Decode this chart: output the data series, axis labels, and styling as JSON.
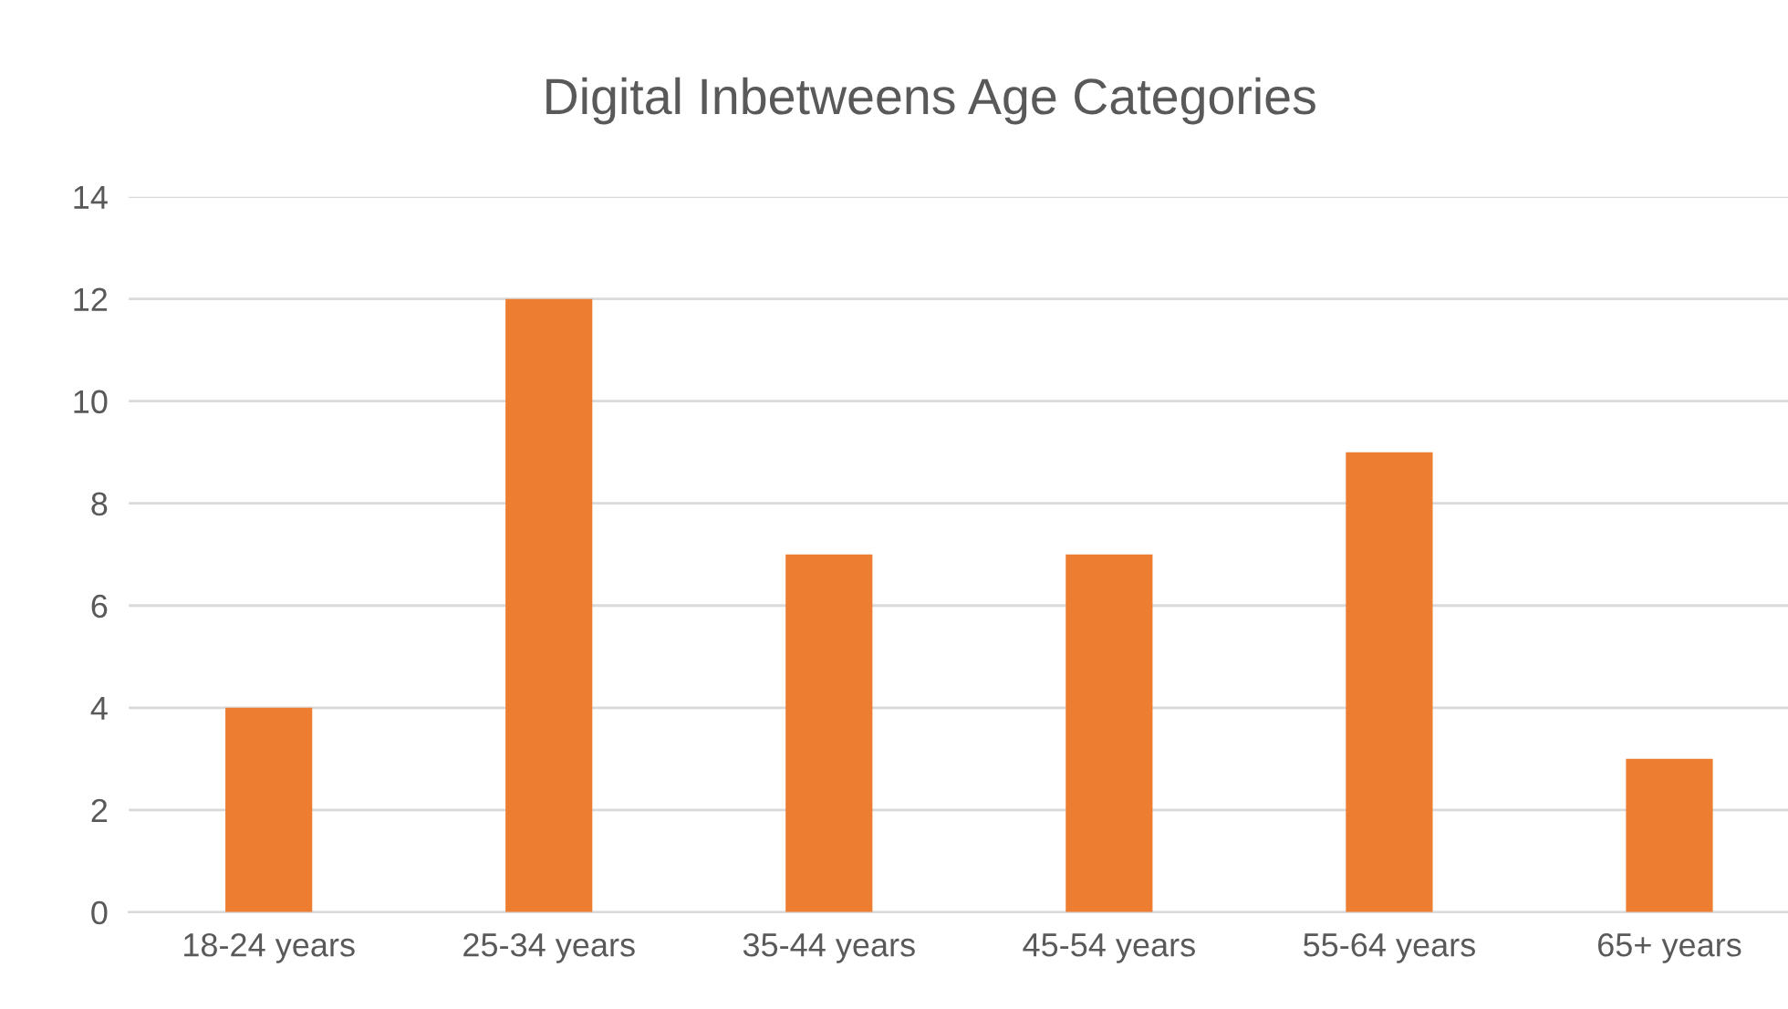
{
  "chart_data": {
    "type": "bar",
    "title": "Digital Inbetweens Age Categories",
    "categories": [
      "18-24 years",
      "25-34 years",
      "35-44 years",
      "45-54 years",
      "55-64 years",
      "65+ years"
    ],
    "values": [
      4,
      12,
      7,
      7,
      9,
      3
    ],
    "color": "#ed7d31",
    "ylim": [
      0,
      14
    ],
    "yticks": [
      0,
      2,
      4,
      6,
      8,
      10,
      12,
      14
    ],
    "grid": "y",
    "legend": false
  }
}
